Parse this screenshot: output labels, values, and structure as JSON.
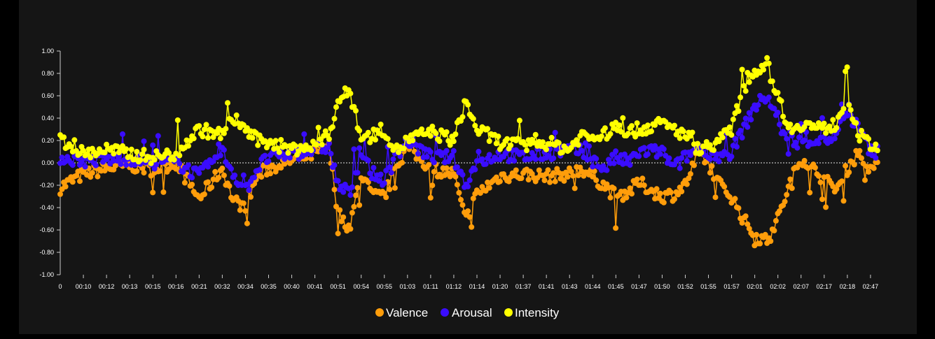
{
  "chart_data": {
    "type": "line",
    "title": "",
    "xlabel": "",
    "ylabel": "",
    "ylim": [
      -1.0,
      1.0
    ],
    "y_ticks": [
      "1.00",
      "0.80",
      "0.60",
      "0.40",
      "0.20",
      "0.00",
      "-0.20",
      "-0.40",
      "-0.60",
      "-0.80",
      "-1.00"
    ],
    "x_ticks": [
      "0",
      "00:10",
      "00:12",
      "00:13",
      "00:15",
      "00:16",
      "00:21",
      "00:32",
      "00:34",
      "00:35",
      "00:40",
      "00:41",
      "00:51",
      "00:54",
      "00:55",
      "01:03",
      "01:11",
      "01:12",
      "01:14",
      "01:20",
      "01:37",
      "01:41",
      "01:43",
      "01:44",
      "01:45",
      "01:47",
      "01:50",
      "01:52",
      "01:55",
      "01:57",
      "02:01",
      "02:02",
      "02:07",
      "02:17",
      "02:18",
      "02:47"
    ],
    "zero_line": "dashed",
    "grid": false,
    "legend_position": "bottom-center",
    "series": [
      {
        "name": "Valence",
        "color": "#ff9d0a",
        "anchors": [
          [
            0,
            -0.22
          ],
          [
            1,
            -0.1
          ],
          [
            2,
            -0.05
          ],
          [
            3,
            -0.02
          ],
          [
            4,
            -0.06
          ],
          [
            5,
            0
          ],
          [
            6,
            -0.32
          ],
          [
            7,
            -0.05
          ],
          [
            7.5,
            -0.35
          ],
          [
            8,
            -0.38
          ],
          [
            8.5,
            -0.12
          ],
          [
            9,
            -0.05
          ],
          [
            10,
            0.02
          ],
          [
            11,
            0.08
          ],
          [
            11.6,
            0.15
          ],
          [
            12,
            -0.45
          ],
          [
            12.5,
            -0.58
          ],
          [
            13,
            -0.1
          ],
          [
            13.5,
            -0.3
          ],
          [
            14,
            -0.3
          ],
          [
            14.5,
            -0.05
          ],
          [
            15,
            0.15
          ],
          [
            16,
            -0.05
          ],
          [
            17,
            -0.1
          ],
          [
            17.5,
            -0.52
          ],
          [
            18,
            -0.28
          ],
          [
            19,
            -0.12
          ],
          [
            20,
            -0.1
          ],
          [
            21,
            -0.12
          ],
          [
            22,
            -0.1
          ],
          [
            22.5,
            -0.05
          ],
          [
            23,
            -0.12
          ],
          [
            23.5,
            -0.2
          ],
          [
            24,
            -0.3
          ],
          [
            24.6,
            -0.25
          ],
          [
            25,
            -0.18
          ],
          [
            26,
            -0.3
          ],
          [
            26.5,
            -0.28
          ],
          [
            27,
            -0.2
          ],
          [
            27.6,
            0.1
          ],
          [
            28,
            0.0
          ],
          [
            28.5,
            -0.2
          ],
          [
            29,
            -0.3
          ],
          [
            29.5,
            -0.5
          ],
          [
            30,
            -0.65
          ],
          [
            30.5,
            -0.7
          ],
          [
            31,
            -0.5
          ],
          [
            31.5,
            -0.2
          ],
          [
            32,
            0.05
          ],
          [
            33,
            -0.15
          ],
          [
            33.5,
            -0.25
          ],
          [
            34,
            -0.05
          ],
          [
            34.5,
            0.1
          ],
          [
            35,
            -0.05
          ]
        ]
      },
      {
        "name": "Arousal",
        "color": "#3a0cff",
        "anchors": [
          [
            0,
            0.05
          ],
          [
            1,
            0.02
          ],
          [
            2,
            0.03
          ],
          [
            3,
            0.04
          ],
          [
            4,
            0.0
          ],
          [
            5,
            0.01
          ],
          [
            6,
            -0.12
          ],
          [
            7,
            0.1
          ],
          [
            7.5,
            -0.1
          ],
          [
            8,
            -0.25
          ],
          [
            8.5,
            -0.05
          ],
          [
            9,
            0.05
          ],
          [
            10,
            0.08
          ],
          [
            11,
            0.12
          ],
          [
            11.6,
            0.15
          ],
          [
            12,
            -0.2
          ],
          [
            12.5,
            -0.28
          ],
          [
            13,
            0.08
          ],
          [
            13.5,
            -0.1
          ],
          [
            14,
            -0.15
          ],
          [
            14.5,
            0.05
          ],
          [
            15,
            0.2
          ],
          [
            16,
            0.05
          ],
          [
            17,
            0.05
          ],
          [
            17.5,
            -0.2
          ],
          [
            18,
            0.0
          ],
          [
            19,
            0.08
          ],
          [
            20,
            0.05
          ],
          [
            21,
            0.08
          ],
          [
            22,
            0.12
          ],
          [
            22.5,
            0.1
          ],
          [
            23,
            0.02
          ],
          [
            23.5,
            -0.05
          ],
          [
            24,
            0.05
          ],
          [
            24.6,
            0.0
          ],
          [
            25,
            0.1
          ],
          [
            26,
            0.1
          ],
          [
            26.5,
            -0.05
          ],
          [
            27,
            0.05
          ],
          [
            27.6,
            0.15
          ],
          [
            28,
            0.1
          ],
          [
            28.5,
            0.05
          ],
          [
            29,
            0.1
          ],
          [
            29.5,
            0.3
          ],
          [
            30,
            0.5
          ],
          [
            30.5,
            0.6
          ],
          [
            31,
            0.4
          ],
          [
            31.5,
            0.1
          ],
          [
            32,
            0.2
          ],
          [
            33,
            0.2
          ],
          [
            33.5,
            0.25
          ],
          [
            34,
            0.45
          ],
          [
            34.5,
            0.3
          ],
          [
            35,
            0.1
          ]
        ]
      },
      {
        "name": "Intensity",
        "color": "#ffff00",
        "anchors": [
          [
            0,
            0.22
          ],
          [
            1,
            0.08
          ],
          [
            2,
            0.12
          ],
          [
            3,
            0.08
          ],
          [
            4,
            0.05
          ],
          [
            5,
            0.08
          ],
          [
            6,
            0.3
          ],
          [
            7,
            0.25
          ],
          [
            7.5,
            0.4
          ],
          [
            8,
            0.3
          ],
          [
            8.5,
            0.2
          ],
          [
            9,
            0.18
          ],
          [
            10,
            0.12
          ],
          [
            11,
            0.15
          ],
          [
            11.6,
            0.25
          ],
          [
            12,
            0.55
          ],
          [
            12.5,
            0.65
          ],
          [
            13,
            0.2
          ],
          [
            13.5,
            0.25
          ],
          [
            14,
            0.3
          ],
          [
            14.5,
            0.1
          ],
          [
            15,
            0.2
          ],
          [
            16,
            0.28
          ],
          [
            17,
            0.2
          ],
          [
            17.5,
            0.55
          ],
          [
            18,
            0.3
          ],
          [
            19,
            0.18
          ],
          [
            20,
            0.15
          ],
          [
            21,
            0.18
          ],
          [
            22,
            0.12
          ],
          [
            22.5,
            0.25
          ],
          [
            23,
            0.22
          ],
          [
            23.5,
            0.25
          ],
          [
            24,
            0.32
          ],
          [
            24.6,
            0.28
          ],
          [
            25,
            0.3
          ],
          [
            26,
            0.35
          ],
          [
            26.5,
            0.3
          ],
          [
            27,
            0.25
          ],
          [
            27.6,
            0.12
          ],
          [
            28,
            0.15
          ],
          [
            28.5,
            0.2
          ],
          [
            29,
            0.3
          ],
          [
            29.5,
            0.65
          ],
          [
            30,
            0.82
          ],
          [
            30.5,
            0.9
          ],
          [
            31,
            0.6
          ],
          [
            31.5,
            0.3
          ],
          [
            32,
            0.35
          ],
          [
            33,
            0.3
          ],
          [
            33.5,
            0.35
          ],
          [
            34,
            0.6
          ],
          [
            34.5,
            0.25
          ],
          [
            35,
            0.15
          ]
        ]
      }
    ]
  }
}
